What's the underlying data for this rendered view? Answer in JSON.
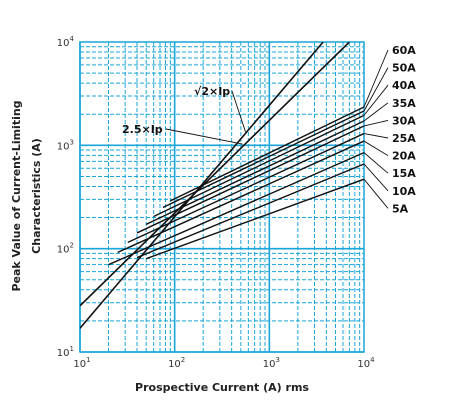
{
  "chart_data": {
    "type": "line",
    "xscale": "log",
    "yscale": "log",
    "xlim": [
      10,
      10000
    ],
    "ylim": [
      10,
      10000
    ],
    "grid": true,
    "grid_color": "#1aa6d9",
    "line_color": "#111111",
    "xlabel": "Prospective Current (A) rms",
    "ylabel_line1": "Peak Value of Current-Limiting",
    "ylabel_line2": "Characteristics (A)",
    "x_ticks": [
      {
        "value": 10,
        "base": "10",
        "exp": "1"
      },
      {
        "value": 100,
        "base": "10",
        "exp": "2"
      },
      {
        "value": 1000,
        "base": "10",
        "exp": "3"
      },
      {
        "value": 10000,
        "base": "10",
        "exp": "4"
      }
    ],
    "y_ticks": [
      {
        "value": 10,
        "base": "10",
        "exp": "1"
      },
      {
        "value": 100,
        "base": "10",
        "exp": "2"
      },
      {
        "value": 1000,
        "base": "10",
        "exp": "3"
      },
      {
        "value": 10000,
        "base": "10",
        "exp": "4"
      }
    ],
    "reference_lines": [
      {
        "label": "√2×Ip",
        "x": [
          10,
          7000
        ],
        "y": [
          28,
          10000
        ],
        "label_at_x": 560,
        "label_at_y": 1350
      },
      {
        "label": "2.5×Ip",
        "x": [
          10,
          3700
        ],
        "y": [
          17,
          10000
        ],
        "label_at_x": 520,
        "label_at_y": 1030
      }
    ],
    "series": [
      {
        "name": "60A",
        "x": [
          90,
          10000
        ],
        "y": [
          290,
          2350
        ]
      },
      {
        "name": "50A",
        "x": [
          75,
          10000
        ],
        "y": [
          250,
          2150
        ]
      },
      {
        "name": "40A",
        "x": [
          60,
          10000
        ],
        "y": [
          205,
          1950
        ]
      },
      {
        "name": "35A",
        "x": [
          50,
          10000
        ],
        "y": [
          172,
          1720
        ]
      },
      {
        "name": "30A",
        "x": [
          40,
          10000
        ],
        "y": [
          142,
          1540
        ]
      },
      {
        "name": "25A",
        "x": [
          32,
          10000
        ],
        "y": [
          115,
          1300
        ]
      },
      {
        "name": "20A",
        "x": [
          25,
          10000
        ],
        "y": [
          92,
          1100
        ]
      },
      {
        "name": "15A",
        "x": [
          20,
          10000
        ],
        "y": [
          70,
          850
        ]
      },
      {
        "name": "10A",
        "x": [
          40,
          10000
        ],
        "y": [
          82,
          660
        ]
      },
      {
        "name": "5A",
        "x": [
          50,
          10000
        ],
        "y": [
          80,
          470
        ]
      }
    ]
  }
}
